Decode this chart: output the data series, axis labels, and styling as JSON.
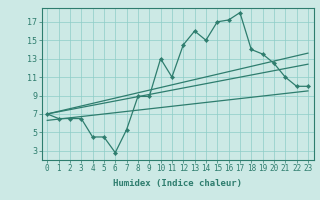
{
  "title": "",
  "xlabel": "Humidex (Indice chaleur)",
  "ylabel": "",
  "bg_color": "#cce9e5",
  "line_color": "#2e7d6e",
  "grid_color": "#8ecdc7",
  "xlim": [
    -0.5,
    23.5
  ],
  "ylim": [
    2.0,
    18.5
  ],
  "xticks": [
    0,
    1,
    2,
    3,
    4,
    5,
    6,
    7,
    8,
    9,
    10,
    11,
    12,
    13,
    14,
    15,
    16,
    17,
    18,
    19,
    20,
    21,
    22,
    23
  ],
  "yticks": [
    3,
    5,
    7,
    9,
    11,
    13,
    15,
    17
  ],
  "main_x": [
    0,
    1,
    2,
    3,
    4,
    5,
    6,
    7,
    8,
    9,
    10,
    11,
    12,
    13,
    14,
    15,
    16,
    17,
    18,
    19,
    20,
    21,
    22,
    23
  ],
  "main_y": [
    7.0,
    6.5,
    6.5,
    6.5,
    4.5,
    4.5,
    2.8,
    5.3,
    8.9,
    8.9,
    13.0,
    11.0,
    14.5,
    16.0,
    15.0,
    17.0,
    17.2,
    18.0,
    14.0,
    13.5,
    12.5,
    11.0,
    10.0,
    10.0
  ],
  "line1_x": [
    0,
    23
  ],
  "line1_y": [
    7.0,
    13.6
  ],
  "line2_x": [
    0,
    23
  ],
  "line2_y": [
    7.0,
    12.4
  ],
  "line3_x": [
    0,
    23
  ],
  "line3_y": [
    6.3,
    9.5
  ],
  "tick_fontsize": 5.5,
  "xlabel_fontsize": 6.5
}
